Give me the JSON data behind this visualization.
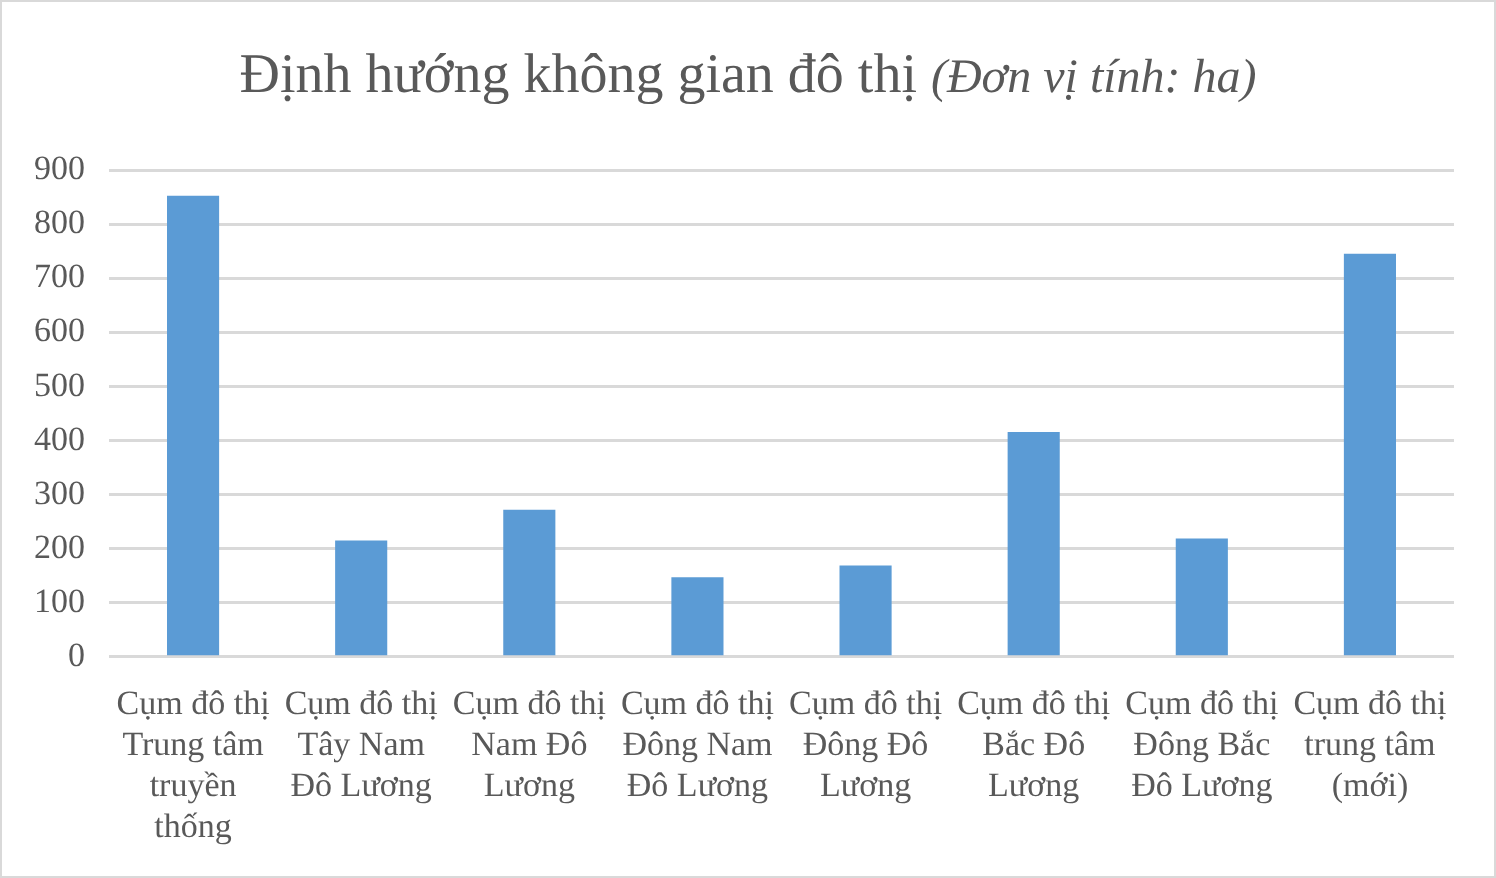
{
  "chart_data": {
    "type": "bar",
    "title": "Định hướng không gian đô thị",
    "subtitle": "(Đơn vị tính: ha)",
    "categories": [
      "Cụm đô thị Trung tâm truyền thống",
      "Cụm đô thị Tây Nam Đô Lương",
      "Cụm đô thị Nam Đô Lương",
      "Cụm đô thị Đông Nam Đô Lương",
      "Cụm đô thị Đông Đô Lương",
      "Cụm đô thị Bắc Đô Lương",
      "Cụm đô thị Đông Bắc  Đô Lương",
      "Cụm đô thị trung tâm (mới)"
    ],
    "values": [
      853,
      215,
      272,
      147,
      169,
      416,
      219,
      746
    ],
    "color": "#5b9bd5",
    "ylim": [
      0,
      900
    ],
    "yticks": [
      0,
      100,
      200,
      300,
      400,
      500,
      600,
      700,
      800,
      900
    ],
    "grid": "y",
    "legend": false
  }
}
